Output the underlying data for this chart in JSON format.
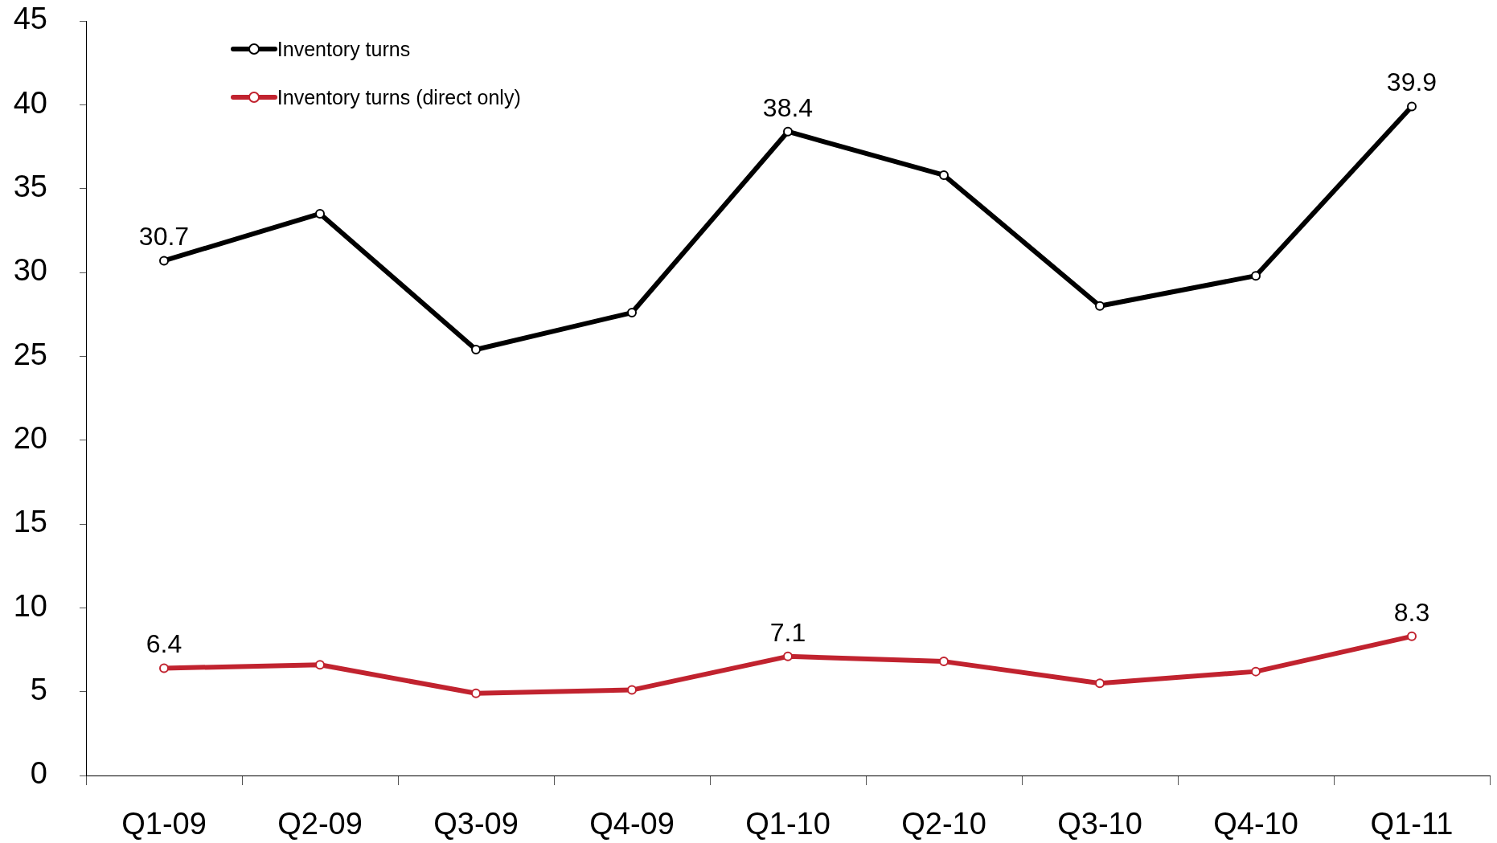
{
  "chart_data": {
    "type": "line",
    "categories": [
      "Q1-09",
      "Q2-09",
      "Q3-09",
      "Q4-09",
      "Q1-10",
      "Q2-10",
      "Q3-10",
      "Q4-10",
      "Q1-11"
    ],
    "series": [
      {
        "name": "Inventory turns",
        "color": "#000000",
        "values": [
          30.7,
          33.5,
          25.4,
          27.6,
          38.4,
          35.8,
          28.0,
          29.8,
          39.9
        ],
        "value_labels": [
          "30.7",
          null,
          null,
          null,
          "38.4",
          null,
          null,
          null,
          "39.9"
        ]
      },
      {
        "name": "Inventory turns (direct only)",
        "color": "#c1232f",
        "values": [
          6.4,
          6.6,
          4.9,
          5.1,
          7.1,
          6.8,
          5.5,
          6.2,
          8.3
        ],
        "value_labels": [
          "6.4",
          null,
          null,
          null,
          "7.1",
          null,
          null,
          null,
          "8.3"
        ]
      }
    ],
    "ylim": [
      0,
      45
    ],
    "yticks": [
      0,
      5,
      10,
      15,
      20,
      25,
      30,
      35,
      40,
      45
    ],
    "grid": false,
    "legend": "top left",
    "marker": "circle",
    "line_style": "solid"
  }
}
